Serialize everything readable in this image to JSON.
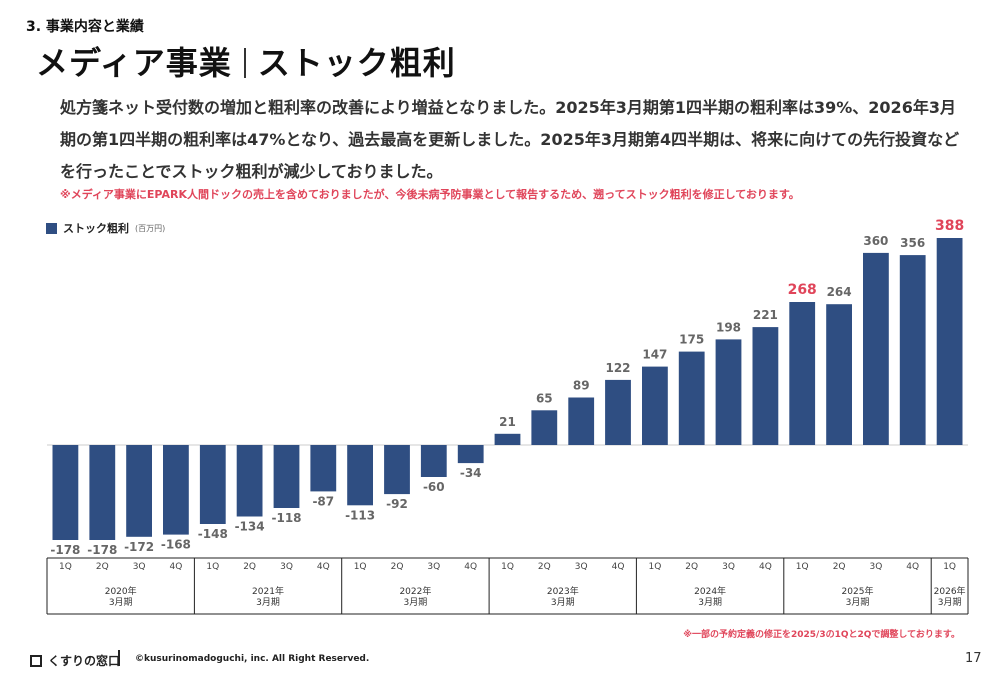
{
  "header": {
    "section_label": "3. 事業内容と業績",
    "title_left": "メディア事業",
    "title_right": "ストック粗利"
  },
  "lead_text": "処方箋ネット受付数の増加と粗利率の改善により増益となりました。2025年3月期第1四半期の粗利率は39%、2026年3月期の第1四半期の粗利率は47%となり、過去最高を更新しました。2025年3月期第4四半期は、将来に向けての先行投資などを行ったことでストック粗利が減少しておりました。",
  "note_top": "※メディア事業にEPARK人間ドックの売上を含めておりましたが、今後未病予防事業として報告するため、遡ってストック粗利を修正しております。",
  "legend": {
    "label": "ストック粗利",
    "unit": "(百万円)"
  },
  "footnote": "※一部の予約定義の修正を2025/3の1Qと2Qで調整しております。",
  "footer": {
    "logo_text": "くすりの窓口",
    "copyright": "©kusurinomadoguchi, inc. All Right Reserved.",
    "page_number": "17"
  },
  "colors": {
    "bar": "#2f4e82",
    "highlight": "#e0455a",
    "label": "#666666"
  },
  "chart_data": {
    "type": "bar",
    "title": "",
    "series": [
      {
        "name": "ストック粗利",
        "values": [
          -178,
          -178,
          -172,
          -168,
          -148,
          -134,
          -118,
          -87,
          -113,
          -92,
          -60,
          -34,
          21,
          65,
          89,
          122,
          147,
          175,
          198,
          221,
          268,
          264,
          360,
          356,
          388
        ]
      }
    ],
    "categories": [
      "1Q",
      "2Q",
      "3Q",
      "4Q",
      "1Q",
      "2Q",
      "3Q",
      "4Q",
      "1Q",
      "2Q",
      "3Q",
      "4Q",
      "1Q",
      "2Q",
      "3Q",
      "4Q",
      "1Q",
      "2Q",
      "3Q",
      "4Q",
      "1Q",
      "2Q",
      "3Q",
      "4Q",
      "1Q"
    ],
    "groups": [
      {
        "label1": "2020年",
        "label2": "3月期",
        "count": 4
      },
      {
        "label1": "2021年",
        "label2": "3月期",
        "count": 4
      },
      {
        "label1": "2022年",
        "label2": "3月期",
        "count": 4
      },
      {
        "label1": "2023年",
        "label2": "3月期",
        "count": 4
      },
      {
        "label1": "2024年",
        "label2": "3月期",
        "count": 4
      },
      {
        "label1": "2025年",
        "label2": "3月期",
        "count": 4
      },
      {
        "label1": "2026年",
        "label2": "3月期",
        "count": 1
      }
    ],
    "highlight_indices": [
      20,
      24
    ],
    "ylim": [
      -178,
      388
    ],
    "legend_position": "top-left",
    "grid": false
  }
}
